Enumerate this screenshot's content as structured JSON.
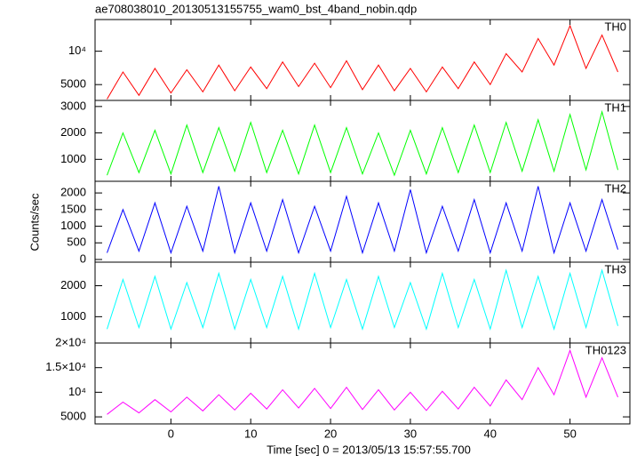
{
  "title": "ae708038010_20130513155755_wam0_bst_4band_nobin.qdp",
  "xlabel": "Time [sec] 0 = 2013/05/13 15:57:55.700",
  "ylabel": "Counts/sec",
  "xlim": [
    -9.5,
    57.5
  ],
  "xticks": [
    0,
    10,
    20,
    30,
    40,
    50
  ],
  "chart_data": [
    {
      "type": "line",
      "label": "TH0",
      "color": "#ff0000",
      "log": true,
      "ylim": [
        3600,
        19300
      ],
      "yticks": [
        5000,
        {
          "value": 10000,
          "label": "10⁴"
        }
      ],
      "x": [
        -8,
        -6,
        -4,
        -2,
        0,
        2,
        4,
        6,
        8,
        10,
        12,
        14,
        16,
        18,
        20,
        22,
        24,
        26,
        28,
        30,
        32,
        34,
        36,
        38,
        40,
        42,
        44,
        46,
        48,
        50,
        52,
        54,
        56
      ],
      "values": [
        3700,
        6500,
        4000,
        7000,
        4200,
        6800,
        4300,
        7500,
        4400,
        7200,
        4600,
        8000,
        4800,
        7800,
        4700,
        8200,
        4500,
        7500,
        4400,
        7000,
        4300,
        7200,
        4600,
        8000,
        5000,
        9500,
        6500,
        13000,
        7500,
        17000,
        7000,
        14000,
        6500
      ]
    },
    {
      "type": "line",
      "label": "TH1",
      "color": "#00ff00",
      "log": false,
      "ylim": [
        170,
        3230
      ],
      "yticks": [
        1000,
        2000,
        3000
      ],
      "x": [
        -8,
        -6,
        -4,
        -2,
        0,
        2,
        4,
        6,
        8,
        10,
        12,
        14,
        16,
        18,
        20,
        22,
        24,
        26,
        28,
        30,
        32,
        34,
        36,
        38,
        40,
        42,
        44,
        46,
        48,
        50,
        52,
        54,
        56
      ],
      "values": [
        400,
        2000,
        500,
        2100,
        450,
        2300,
        500,
        2200,
        550,
        2400,
        500,
        2100,
        450,
        2300,
        500,
        2200,
        450,
        2000,
        400,
        2100,
        450,
        2200,
        500,
        2300,
        500,
        2400,
        550,
        2500,
        550,
        2700,
        600,
        2800,
        600
      ]
    },
    {
      "type": "line",
      "label": "TH2",
      "color": "#0000ff",
      "log": false,
      "ylim": [
        -80,
        2350
      ],
      "yticks": [
        0,
        500,
        1000,
        1500,
        2000
      ],
      "x": [
        -8,
        -6,
        -4,
        -2,
        0,
        2,
        4,
        6,
        8,
        10,
        12,
        14,
        16,
        18,
        20,
        22,
        24,
        26,
        28,
        30,
        32,
        34,
        36,
        38,
        40,
        42,
        44,
        46,
        48,
        50,
        52,
        54,
        56
      ],
      "values": [
        200,
        1500,
        250,
        1700,
        200,
        1600,
        250,
        2200,
        200,
        1700,
        250,
        1800,
        200,
        1600,
        250,
        1900,
        200,
        1700,
        250,
        2100,
        200,
        1600,
        250,
        1800,
        200,
        1700,
        250,
        2200,
        200,
        1700,
        250,
        1800,
        300
      ]
    },
    {
      "type": "line",
      "label": "TH3",
      "color": "#00ffff",
      "log": false,
      "ylim": [
        150,
        2760
      ],
      "yticks": [
        1000,
        2000
      ],
      "x": [
        -8,
        -6,
        -4,
        -2,
        0,
        2,
        4,
        6,
        8,
        10,
        12,
        14,
        16,
        18,
        20,
        22,
        24,
        26,
        28,
        30,
        32,
        34,
        36,
        38,
        40,
        42,
        44,
        46,
        48,
        50,
        52,
        54,
        56
      ],
      "values": [
        600,
        2200,
        650,
        2300,
        600,
        2100,
        650,
        2400,
        600,
        2200,
        650,
        2300,
        600,
        2400,
        650,
        2200,
        600,
        2300,
        650,
        2100,
        600,
        2400,
        650,
        2200,
        600,
        2500,
        650,
        2300,
        600,
        2400,
        650,
        2500,
        700
      ]
    },
    {
      "type": "line",
      "label": "TH0123",
      "color": "#ff00ff",
      "log": false,
      "ylim": [
        3570,
        20000
      ],
      "yticks": [
        5000,
        {
          "value": 10000,
          "label": "10⁴"
        },
        {
          "value": 15000,
          "label": "1.5×10⁴"
        },
        {
          "value": 20000,
          "label": "2×10⁴"
        }
      ],
      "x": [
        -8,
        -6,
        -4,
        -2,
        0,
        2,
        4,
        6,
        8,
        10,
        12,
        14,
        16,
        18,
        20,
        22,
        24,
        26,
        28,
        30,
        32,
        34,
        36,
        38,
        40,
        42,
        44,
        46,
        48,
        50,
        52,
        54,
        56
      ],
      "values": [
        5500,
        8000,
        5800,
        8500,
        6000,
        9000,
        6200,
        9500,
        6400,
        9800,
        6600,
        10500,
        6800,
        10800,
        6700,
        11000,
        6500,
        10500,
        6400,
        10000,
        6300,
        10200,
        6600,
        11000,
        7200,
        12500,
        8500,
        15000,
        9500,
        18500,
        9000,
        17000,
        9000
      ]
    }
  ]
}
